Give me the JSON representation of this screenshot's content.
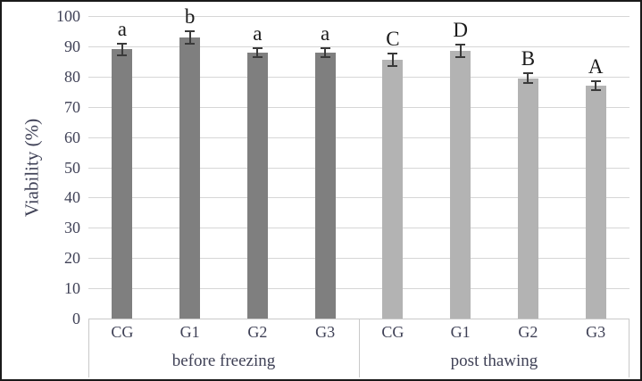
{
  "chart_data": {
    "type": "bar",
    "title": "",
    "ylabel": "Viability (%)",
    "xlabel": "",
    "ylim": [
      0,
      100
    ],
    "yticks": [
      0,
      10,
      20,
      30,
      40,
      50,
      60,
      70,
      80,
      90,
      100
    ],
    "grid": true,
    "legend": false,
    "groups": [
      {
        "label": "before freezing",
        "color": "#7f7f7f",
        "bars": [
          {
            "category": "CG",
            "value": 89,
            "error": 2,
            "letter": "a"
          },
          {
            "category": "G1",
            "value": 93,
            "error": 2,
            "letter": "b"
          },
          {
            "category": "G2",
            "value": 88,
            "error": 1.5,
            "letter": "a"
          },
          {
            "category": "G3",
            "value": 88,
            "error": 1.5,
            "letter": "a"
          }
        ]
      },
      {
        "label": "post thawing",
        "color": "#b3b3b3",
        "bars": [
          {
            "category": "CG",
            "value": 85.5,
            "error": 2,
            "letter": "C"
          },
          {
            "category": "G1",
            "value": 88.5,
            "error": 2,
            "letter": "D"
          },
          {
            "category": "G2",
            "value": 79.5,
            "error": 1.5,
            "letter": "B"
          },
          {
            "category": "G3",
            "value": 77,
            "error": 1.5,
            "letter": "A"
          }
        ]
      }
    ],
    "colors": {
      "bar_before_freezing": "#7f7f7f",
      "bar_post_thawing": "#b3b3b3",
      "gridline": "#d6d6d6",
      "axis_line": "#c9c9c9",
      "text": "#3f4156",
      "letter": "#1a1a1a",
      "error_bar": "#3a3a3a",
      "frame_border": "#1a1a1a"
    }
  }
}
